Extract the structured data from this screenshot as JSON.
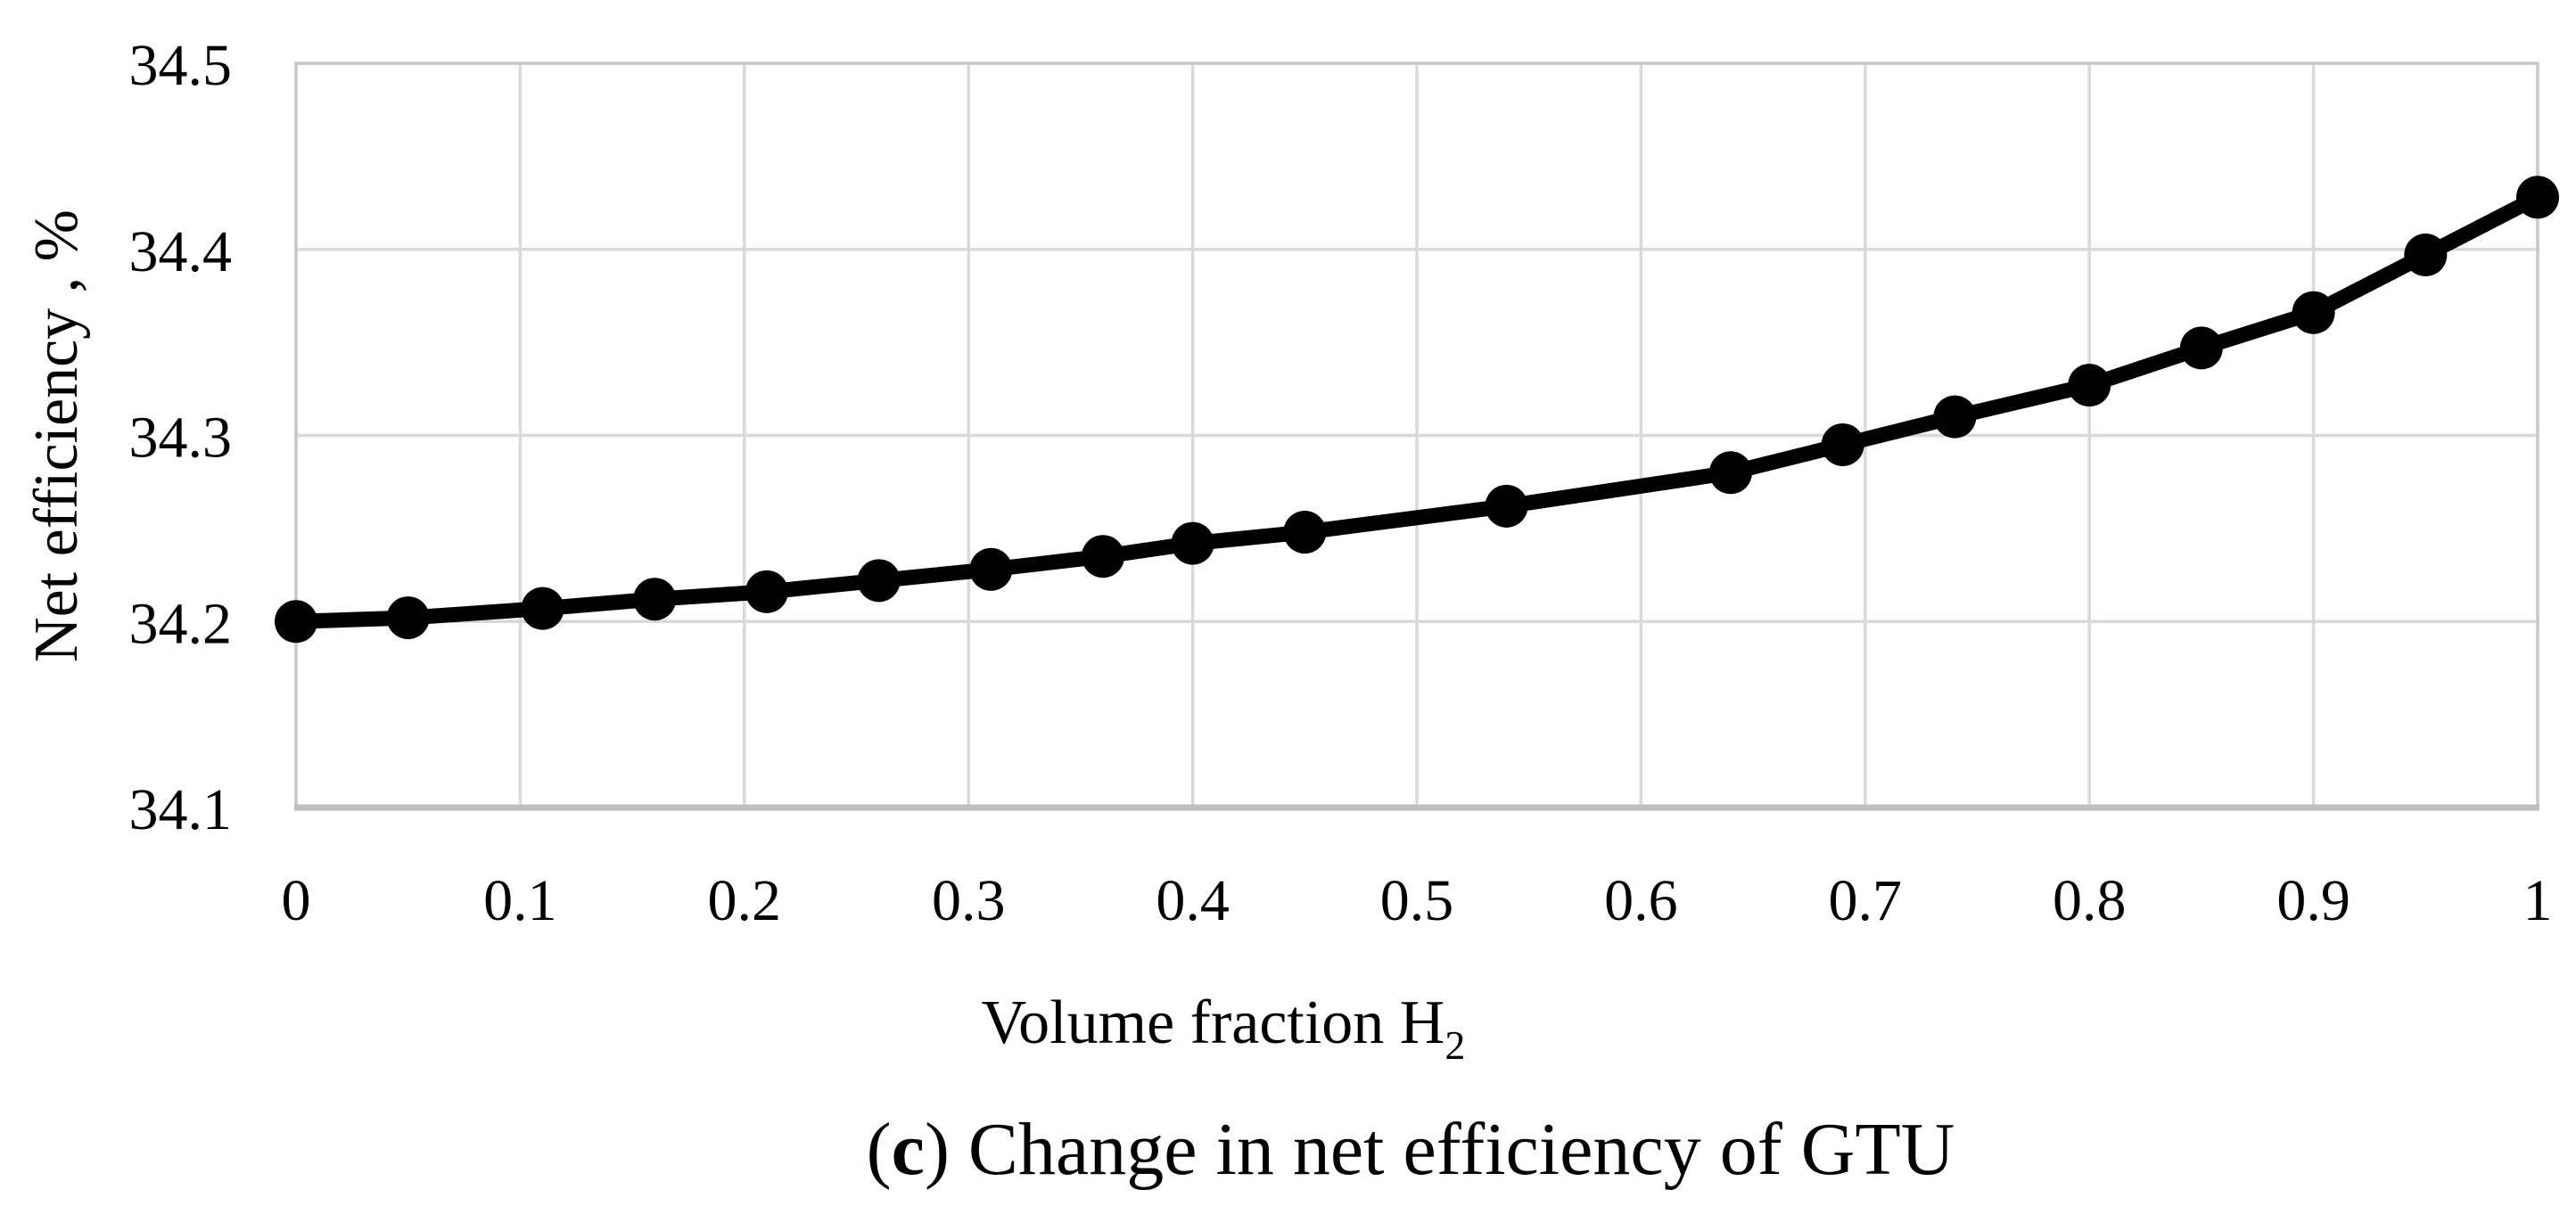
{
  "figure": {
    "y_axis_title": "Net efficiency , %",
    "x_axis_title_prefix": "Volume fraction H",
    "x_axis_title_subscript": "2",
    "caption": {
      "open_paren": "(",
      "letter": "c",
      "rest": ") Change in net efficiency of GTU"
    }
  },
  "chart_data": {
    "type": "line",
    "title": "",
    "xlabel": "Volume fraction H2",
    "ylabel": "Net efficiency , %",
    "series": [
      {
        "name": "Net efficiency of GTU",
        "x": [
          0,
          0.05,
          0.11,
          0.16,
          0.21,
          0.26,
          0.31,
          0.36,
          0.4,
          0.45,
          0.54,
          0.64,
          0.69,
          0.74,
          0.8,
          0.85,
          0.9,
          0.95,
          1.0
        ],
        "y": [
          34.2,
          34.202,
          34.207,
          34.212,
          34.216,
          34.222,
          34.228,
          34.235,
          34.242,
          34.248,
          34.262,
          34.28,
          34.295,
          34.31,
          34.327,
          34.347,
          34.366,
          34.397,
          34.428
        ]
      }
    ],
    "xlim": [
      0,
      1
    ],
    "ylim": [
      34.1,
      34.5
    ],
    "xticks": [
      0,
      0.1,
      0.2,
      0.3,
      0.4,
      0.5,
      0.6,
      0.7,
      0.8,
      0.9,
      1
    ],
    "xtick_labels": [
      "0",
      "0.1",
      "0.2",
      "0.3",
      "0.4",
      "0.5",
      "0.6",
      "0.7",
      "0.8",
      "0.9",
      "1"
    ],
    "yticks": [
      34.1,
      34.2,
      34.3,
      34.4,
      34.5
    ],
    "ytick_labels": [
      "34.1",
      "34.2",
      "34.3",
      "34.4",
      "34.5"
    ],
    "grid": true,
    "legend": "none",
    "marker": "circle",
    "colors": {
      "line": "#000000",
      "marker": "#000000",
      "gridline": "#d9d9d9",
      "plot_border": "#c9c9c9",
      "axis_line": "#bfbfbf",
      "text": "#000000",
      "background": "#ffffff"
    }
  }
}
